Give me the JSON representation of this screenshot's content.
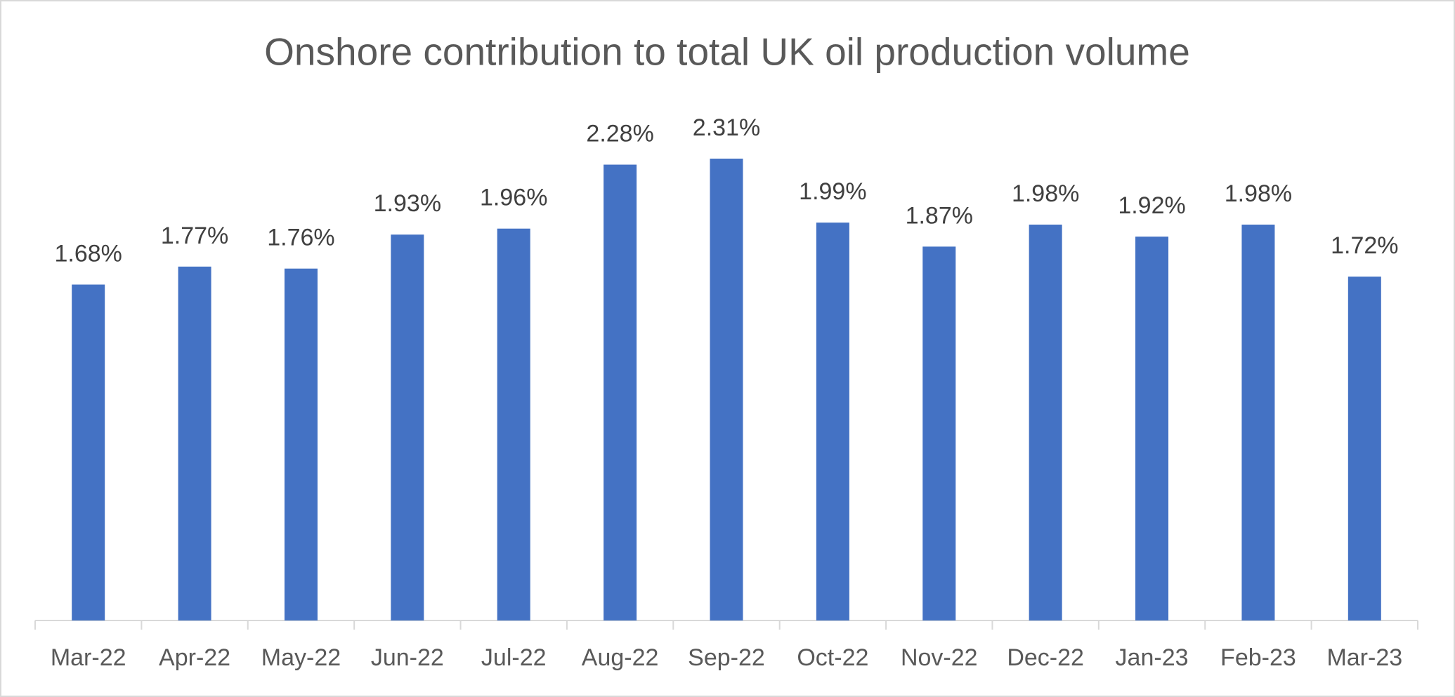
{
  "chart_data": {
    "type": "bar",
    "title": "Onshore contribution to total UK oil production volume",
    "categories": [
      "Mar-22",
      "Apr-22",
      "May-22",
      "Jun-22",
      "Jul-22",
      "Aug-22",
      "Sep-22",
      "Oct-22",
      "Nov-22",
      "Dec-22",
      "Jan-23",
      "Feb-23",
      "Mar-23"
    ],
    "values": [
      1.68,
      1.77,
      1.76,
      1.93,
      1.96,
      2.28,
      2.31,
      1.99,
      1.87,
      1.98,
      1.92,
      1.98,
      1.72
    ],
    "value_labels": [
      "1.68%",
      "1.77%",
      "1.76%",
      "1.93%",
      "1.96%",
      "2.28%",
      "2.31%",
      "1.99%",
      "1.87%",
      "1.98%",
      "1.92%",
      "1.98%",
      "1.72%"
    ],
    "color": "#4472c4"
  }
}
